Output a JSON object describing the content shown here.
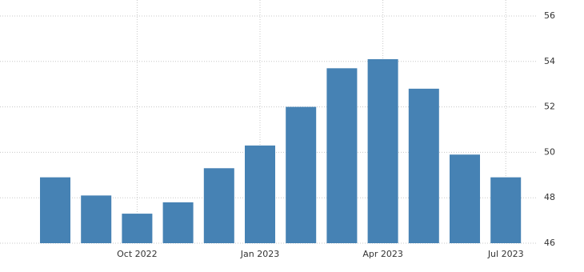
{
  "chart_data": {
    "type": "bar",
    "categories": [
      null,
      null,
      "Oct 2022",
      null,
      null,
      "Jan 2023",
      null,
      null,
      "Apr 2023",
      null,
      null,
      "Jul 2023"
    ],
    "values": [
      48.9,
      48.1,
      47.3,
      47.8,
      49.3,
      50.3,
      52.0,
      53.7,
      54.1,
      52.8,
      49.9,
      48.9
    ],
    "color": "#4682b4",
    "ylim": [
      46,
      56
    ],
    "yticks": [
      46,
      48,
      50,
      52,
      54,
      56
    ],
    "grid": true
  }
}
